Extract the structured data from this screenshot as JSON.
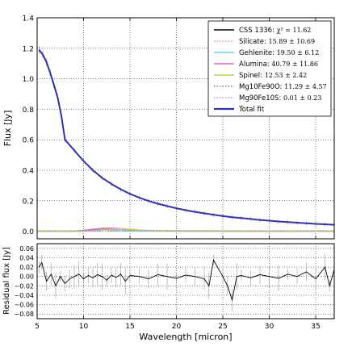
{
  "chart_data": [
    {
      "type": "line",
      "title": "",
      "xlabel": "",
      "ylabel": "Flux [Jy]",
      "xlim": [
        5,
        37
      ],
      "ylim": [
        -0.05,
        1.4
      ],
      "x_ticks": [
        "5",
        "10",
        "15",
        "20",
        "25",
        "30",
        "35"
      ],
      "y_ticks": [
        "0.0",
        "0.2",
        "0.4",
        "0.6",
        "0.8",
        "1.0",
        "1.2",
        "1.4"
      ],
      "grid": true,
      "legend_placement": "top-right",
      "legend": [
        {
          "label": "CSS 1336: ",
          "math": "χ² = 11.62",
          "color": "#000000",
          "style": "solid"
        },
        {
          "label": "Silicate: ",
          "math": "15.89 ± 10.69",
          "color": "#ff8c8c",
          "style": "dotted"
        },
        {
          "label": "Gehlenite: ",
          "math": "19.50 ± 6.12",
          "color": "#60d8e0",
          "style": "solid"
        },
        {
          "label": "Alumina: ",
          "math": "40.79 ± 11.86",
          "color": "#e060e0",
          "style": "solid"
        },
        {
          "label": "Spinel: ",
          "math": "12.53 ± 2.42",
          "color": "#c8c850",
          "style": "solid"
        },
        {
          "label": "Mg10Fe90O: ",
          "math": "11.29 ± 4.57",
          "color": "#808080",
          "style": "dotted"
        },
        {
          "label": "Mg90Fe10S: ",
          "math": "0.01 ± 0.23",
          "color": "#a0a0f0",
          "style": "dotted"
        },
        {
          "label": "Total fit",
          "math": "",
          "color": "#3030b0",
          "style": "solid"
        }
      ],
      "series": [
        {
          "name": "CSS 1336",
          "x": [
            5.2,
            5.6,
            6.0,
            6.4,
            6.8,
            7.2,
            7.6,
            8.0,
            9,
            10,
            11,
            12,
            13,
            14,
            15,
            16,
            17,
            18,
            19,
            20,
            21,
            22,
            23,
            24,
            25,
            26,
            27,
            28,
            29,
            30,
            31,
            32,
            33,
            34,
            35,
            36,
            37
          ],
          "y": [
            1.19,
            1.16,
            1.11,
            1.04,
            0.96,
            0.88,
            0.76,
            0.6,
            0.53,
            0.46,
            0.4,
            0.35,
            0.31,
            0.275,
            0.245,
            0.22,
            0.198,
            0.18,
            0.165,
            0.15,
            0.138,
            0.127,
            0.117,
            0.108,
            0.1,
            0.092,
            0.086,
            0.08,
            0.074,
            0.069,
            0.064,
            0.06,
            0.056,
            0.052,
            0.048,
            0.045,
            0.042
          ]
        },
        {
          "name": "Silicate",
          "x": [
            5,
            8,
            10,
            11,
            12,
            13,
            14,
            15,
            17,
            20,
            25,
            30,
            37
          ],
          "y": [
            0,
            0,
            0.003,
            0.012,
            0.02,
            0.018,
            0.012,
            0.006,
            0.004,
            0.003,
            0.002,
            0.002,
            0.001
          ]
        },
        {
          "name": "Gehlenite",
          "x": [
            5,
            9,
            10,
            11,
            12,
            13,
            14,
            15,
            17,
            20,
            25,
            30,
            37
          ],
          "y": [
            0,
            0,
            0.004,
            0.009,
            0.011,
            0.009,
            0.005,
            0.003,
            0.002,
            0.001,
            0.001,
            0,
            0
          ]
        },
        {
          "name": "Alumina",
          "x": [
            5,
            9,
            10,
            11,
            12,
            13,
            14,
            15,
            16,
            18,
            20,
            25,
            30,
            37
          ],
          "y": [
            0,
            0,
            0.005,
            0.012,
            0.018,
            0.02,
            0.016,
            0.01,
            0.006,
            0.003,
            0.002,
            0.001,
            0,
            0
          ]
        },
        {
          "name": "Spinel",
          "x": [
            5,
            10,
            11,
            12,
            13,
            14,
            15,
            16,
            17,
            18,
            20,
            25,
            37
          ],
          "y": [
            0,
            0,
            0.003,
            0.008,
            0.014,
            0.016,
            0.012,
            0.007,
            0.004,
            0.002,
            0.001,
            0,
            0
          ]
        },
        {
          "name": "Mg10Fe90O",
          "x": [
            5,
            10,
            15,
            20,
            25,
            30,
            37
          ],
          "y": [
            0.001,
            0.001,
            0.001,
            0.001,
            0.001,
            0.001,
            0.001
          ]
        },
        {
          "name": "Mg90Fe10S",
          "x": [
            5,
            10,
            15,
            20,
            25,
            30,
            37
          ],
          "y": [
            0,
            0,
            0,
            0,
            0,
            0,
            0
          ]
        },
        {
          "name": "Total fit",
          "x": [
            5.2,
            5.6,
            6.0,
            6.4,
            6.8,
            7.2,
            7.6,
            8.0,
            9,
            10,
            11,
            12,
            13,
            14,
            15,
            16,
            17,
            18,
            19,
            20,
            21,
            22,
            23,
            24,
            25,
            26,
            27,
            28,
            29,
            30,
            31,
            32,
            33,
            34,
            35,
            36,
            37
          ],
          "y": [
            1.19,
            1.16,
            1.11,
            1.04,
            0.96,
            0.88,
            0.76,
            0.6,
            0.53,
            0.46,
            0.4,
            0.35,
            0.31,
            0.275,
            0.245,
            0.22,
            0.198,
            0.18,
            0.165,
            0.15,
            0.138,
            0.127,
            0.117,
            0.108,
            0.1,
            0.092,
            0.086,
            0.08,
            0.074,
            0.069,
            0.064,
            0.06,
            0.056,
            0.052,
            0.048,
            0.045,
            0.042
          ]
        }
      ]
    },
    {
      "type": "line",
      "title": "",
      "xlabel": "Wavelength [micron]",
      "ylabel": "Residual flux [Jy]",
      "xlim": [
        5,
        37
      ],
      "ylim": [
        -0.09,
        0.07
      ],
      "x_ticks": [
        "5",
        "10",
        "15",
        "20",
        "25",
        "30",
        "35"
      ],
      "y_ticks": [
        "0.06",
        "0.04",
        "0.02",
        "0.00",
        "−0.02",
        "−0.04",
        "−0.06",
        "−0.08"
      ],
      "grid": true,
      "series": [
        {
          "name": "Residual",
          "x": [
            5.2,
            5.5,
            6,
            6.5,
            7,
            7.5,
            8,
            8.5,
            9,
            9.5,
            10,
            10.5,
            11,
            11.5,
            12,
            12.5,
            13,
            13.5,
            14,
            14.5,
            15,
            16,
            17,
            18,
            19,
            20,
            21,
            22,
            23,
            23.5,
            24,
            25,
            25.5,
            26,
            26.5,
            27,
            28,
            29,
            30,
            31,
            32,
            33,
            34,
            35,
            36,
            36.5,
            37
          ],
          "y": [
            0.02,
            0.03,
            -0.01,
            0.005,
            -0.02,
            0,
            -0.015,
            -0.005,
            0,
            0.005,
            -0.005,
            0.002,
            -0.003,
            0.004,
            0,
            -0.008,
            0.003,
            -0.002,
            0.005,
            -0.01,
            0.002,
            0,
            -0.005,
            0.004,
            0,
            -0.004,
            0.003,
            0,
            -0.005,
            -0.02,
            0.035,
            0,
            -0.02,
            -0.05,
            0,
            0.002,
            -0.003,
            0.004,
            0,
            -0.004,
            0.005,
            0,
            0.01,
            -0.005,
            0.02,
            -0.02,
            0.015
          ]
        }
      ]
    }
  ]
}
